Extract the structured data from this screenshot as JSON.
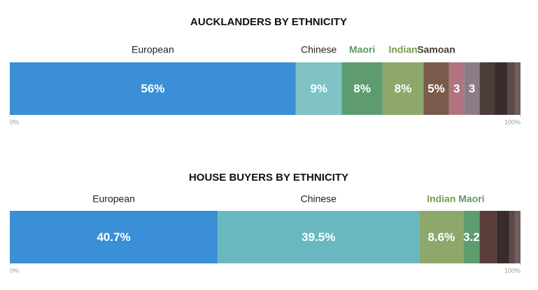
{
  "chart_data": [
    {
      "type": "stacked_bar",
      "title": "AUCKLANDERS BY ETHNICITY",
      "categories": [
        "European",
        "Chinese",
        "Maori",
        "Indian",
        "Samoan",
        null,
        null,
        null,
        null,
        null,
        null
      ],
      "values": [
        56,
        9,
        8,
        8,
        5,
        3,
        3,
        3,
        2.5,
        1.5,
        1
      ],
      "value_labels": [
        "56%",
        "9%",
        "8%",
        "8%",
        "5%",
        "3",
        "3",
        null,
        null,
        null,
        null
      ],
      "colors": [
        "#3a8fd6",
        "#7fc3c6",
        "#5e9c70",
        "#8ea86c",
        "#7a5a4a",
        "#b07480",
        "#8c7c88",
        "#4c3c3a",
        "#3a2c2c",
        "#5c4a4a",
        "#6e5e5e"
      ],
      "label_colors": [
        "#222222",
        "#222222",
        "#5a9a6a",
        "#7a9a50",
        "#4a3e36",
        "#222222",
        "#222222",
        "#222222",
        "#222222",
        "#222222",
        "#222222"
      ],
      "xlim": [
        0,
        100
      ],
      "xticks": [
        {
          "value": 0,
          "label": "0%"
        },
        {
          "value": 100,
          "label": "100%"
        }
      ]
    },
    {
      "type": "stacked_bar",
      "title": "HOUSE BUYERS BY ETHNICITY",
      "categories": [
        "European",
        "Chinese",
        "Indian",
        "Maori",
        null,
        null,
        null,
        null
      ],
      "values": [
        40.7,
        39.5,
        8.6,
        3.2,
        3.3,
        2.5,
        1.2,
        1
      ],
      "value_labels": [
        "40.7%",
        "39.5%",
        "8.6%",
        "3.2",
        null,
        null,
        null,
        null
      ],
      "colors": [
        "#3a8fd6",
        "#6ab8bf",
        "#8ea86c",
        "#5e9c70",
        "#5a3c38",
        "#3a2c2c",
        "#5c4a4a",
        "#6e5e5e"
      ],
      "label_colors": [
        "#222222",
        "#222222",
        "#7a9a50",
        "#5a9a6a",
        "#222222",
        "#222222",
        "#222222",
        "#222222"
      ],
      "xlim": [
        0,
        100
      ],
      "xticks": [
        {
          "value": 0,
          "label": "0%"
        },
        {
          "value": 100,
          "label": "100%"
        }
      ]
    }
  ]
}
